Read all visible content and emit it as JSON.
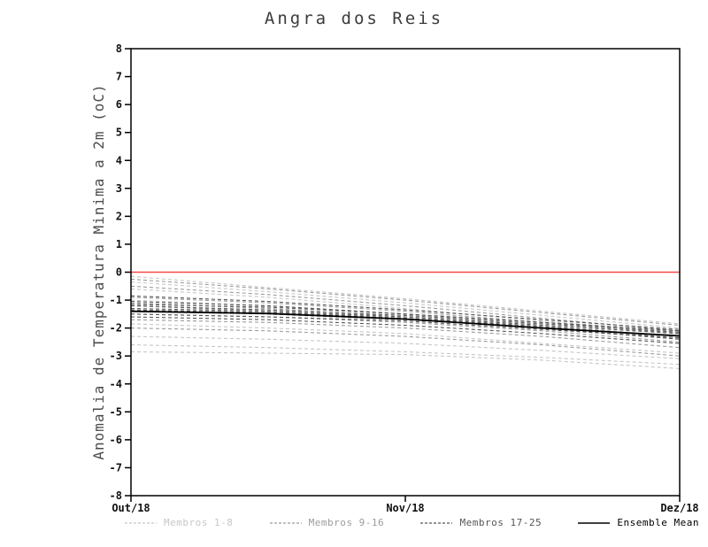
{
  "title": "Angra dos Reis",
  "chart_data": {
    "type": "line",
    "title": "Angra dos Reis",
    "xlabel": "",
    "ylabel": "Anomalia de Temperatura Minima a 2m (oC)",
    "ylim": [
      -8,
      8
    ],
    "ytick_step": 1,
    "grid": false,
    "legend_position": "bottom",
    "zero_line_color": "#f84a46",
    "frame_color": "#000000",
    "x": [
      0,
      0.25,
      0.5,
      0.75,
      1
    ],
    "xtick_positions": [
      0,
      0.5,
      1
    ],
    "xtick_labels": [
      "Out/18",
      "Nov/18",
      "Dez/18"
    ],
    "groups": [
      {
        "name": "Membros 1-8",
        "color": "#c6c6c6",
        "dash": "4,3"
      },
      {
        "name": "Membros 9-16",
        "color": "#9c9c9c",
        "dash": "4,3"
      },
      {
        "name": "Membros 17-25",
        "color": "#565656",
        "dash": "4,3"
      },
      {
        "name": "Ensemble Mean",
        "color": "#000000",
        "dash": null
      }
    ],
    "series": [
      {
        "group": 0,
        "values": [
          -0.15,
          -0.55,
          -0.95,
          -1.4,
          -1.85
        ]
      },
      {
        "group": 0,
        "values": [
          -0.35,
          -0.7,
          -1.1,
          -1.55,
          -2.0
        ]
      },
      {
        "group": 0,
        "values": [
          -2.85,
          -2.9,
          -2.95,
          -3.15,
          -3.45
        ]
      },
      {
        "group": 0,
        "values": [
          -2.6,
          -2.7,
          -2.85,
          -3.05,
          -3.3
        ]
      },
      {
        "group": 0,
        "values": [
          -0.6,
          -0.9,
          -1.3,
          -1.75,
          -2.15
        ]
      },
      {
        "group": 0,
        "values": [
          -1.0,
          -1.2,
          -1.5,
          -1.9,
          -2.3
        ]
      },
      {
        "group": 0,
        "values": [
          -2.3,
          -2.4,
          -2.55,
          -2.8,
          -3.1
        ]
      },
      {
        "group": 0,
        "values": [
          -1.85,
          -2.0,
          -2.2,
          -2.55,
          -2.9
        ]
      },
      {
        "group": 1,
        "values": [
          -0.25,
          -0.6,
          -1.0,
          -1.45,
          -1.9
        ]
      },
      {
        "group": 1,
        "values": [
          -0.9,
          -1.1,
          -1.4,
          -1.8,
          -2.2
        ]
      },
      {
        "group": 1,
        "values": [
          -1.2,
          -1.4,
          -1.65,
          -2.0,
          -2.4
        ]
      },
      {
        "group": 1,
        "values": [
          -1.5,
          -1.6,
          -1.8,
          -2.1,
          -2.5
        ]
      },
      {
        "group": 1,
        "values": [
          -2.0,
          -2.1,
          -2.3,
          -2.6,
          -3.0
        ]
      },
      {
        "group": 1,
        "values": [
          -1.1,
          -1.3,
          -1.6,
          -1.95,
          -2.35
        ]
      },
      {
        "group": 1,
        "values": [
          -1.7,
          -1.8,
          -2.0,
          -2.3,
          -2.7
        ]
      },
      {
        "group": 1,
        "values": [
          -0.5,
          -0.8,
          -1.2,
          -1.65,
          -2.1
        ]
      },
      {
        "group": 2,
        "values": [
          -1.3,
          -1.4,
          -1.6,
          -1.9,
          -2.2
        ]
      },
      {
        "group": 2,
        "values": [
          -1.4,
          -1.5,
          -1.7,
          -2.0,
          -2.4
        ]
      },
      {
        "group": 2,
        "values": [
          -1.05,
          -1.2,
          -1.5,
          -1.8,
          -2.1
        ]
      },
      {
        "group": 2,
        "values": [
          -1.6,
          -1.7,
          -1.9,
          -2.2,
          -2.55
        ]
      },
      {
        "group": 2,
        "values": [
          -1.2,
          -1.35,
          -1.55,
          -1.85,
          -2.15
        ]
      },
      {
        "group": 2,
        "values": [
          -1.5,
          -1.6,
          -1.75,
          -2.05,
          -2.35
        ]
      },
      {
        "group": 2,
        "values": [
          -0.85,
          -1.05,
          -1.35,
          -1.7,
          -2.05
        ]
      },
      {
        "group": 2,
        "values": [
          -1.35,
          -1.45,
          -1.65,
          -1.95,
          -2.3
        ]
      },
      {
        "group": 2,
        "values": [
          -1.15,
          -1.25,
          -1.5,
          -1.8,
          -2.1
        ]
      },
      {
        "group": 3,
        "name": "Ensemble Mean",
        "values": [
          -1.4,
          -1.48,
          -1.68,
          -2.0,
          -2.28
        ]
      }
    ]
  }
}
